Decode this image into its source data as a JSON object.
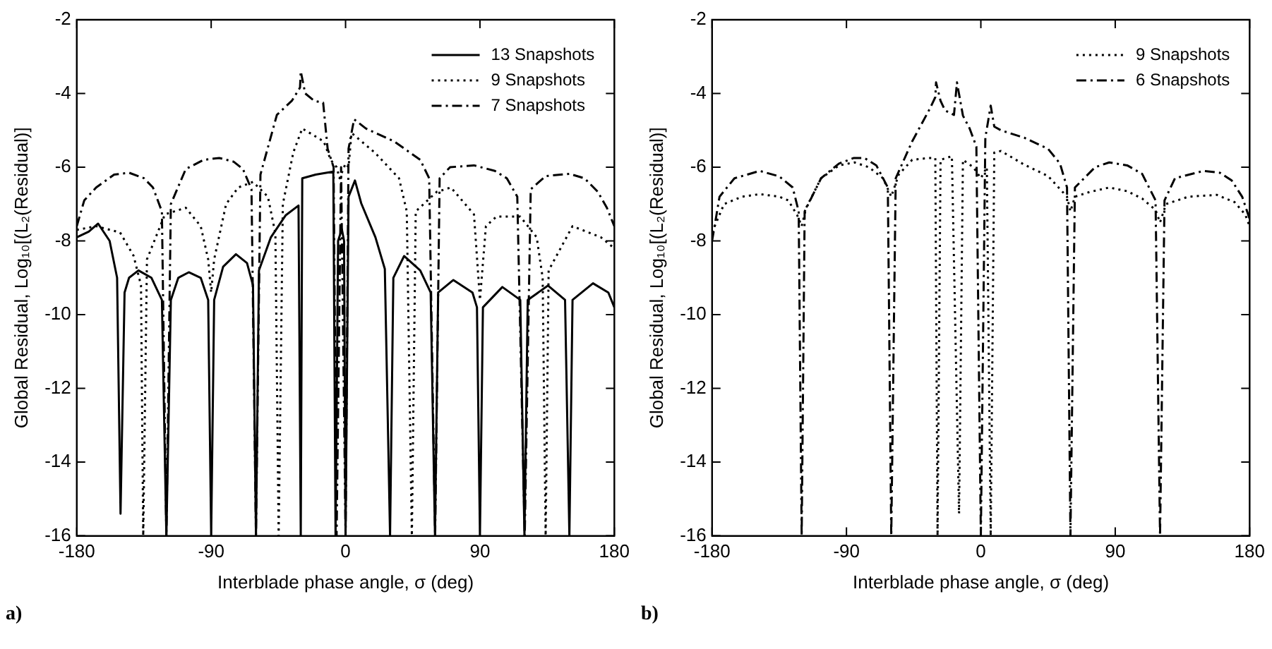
{
  "chart_data": [
    {
      "type": "line",
      "xlabel": "Interblade phase angle, σ (deg)",
      "ylabel": "Global Residual, Log₁₀[(L₂(Residual)]",
      "xlim": [
        -180,
        180
      ],
      "xticks": [
        -180,
        -90,
        0,
        90,
        180
      ],
      "ylim": [
        -16,
        -2
      ],
      "yticks": [
        -16,
        -14,
        -12,
        -10,
        -8,
        -6,
        -4,
        -2
      ],
      "grid": false,
      "legend": "top right",
      "marker": "none",
      "annotations": [
        "a)"
      ],
      "series": [
        {
          "name": "13 Snapshots",
          "color": "#000000",
          "line_style": "solid",
          "x": [
            -180,
            -172,
            -165.7,
            -158,
            -153,
            -150.7,
            -148,
            -145,
            -138.7,
            -130,
            -123,
            -120,
            -117,
            -112,
            -105,
            -97,
            -92,
            -90,
            -88,
            -82,
            -73.4,
            -66,
            -62,
            -60,
            -58,
            -50,
            -40,
            -31.5,
            -30,
            -29,
            -20,
            -8.2,
            -6.7,
            -5,
            -2.5,
            -1,
            0,
            2,
            6.3,
            10.5,
            20,
            26.3,
            29.8,
            32,
            39.2,
            50,
            57,
            59.9,
            62,
            72.2,
            85,
            88,
            90,
            92,
            105,
            117,
            119.8,
            122,
            135.6,
            147,
            149.9,
            152,
            165.7,
            176,
            180
          ],
          "values": [
            -7.9,
            -7.75,
            -7.53,
            -8.0,
            -9.0,
            -15.4,
            -9.4,
            -9.0,
            -8.8,
            -9.0,
            -9.6,
            -16,
            -9.6,
            -9.0,
            -8.85,
            -9.0,
            -9.6,
            -16,
            -9.6,
            -8.7,
            -8.36,
            -8.6,
            -9.2,
            -16,
            -8.8,
            -7.9,
            -7.3,
            -7.04,
            -16,
            -6.3,
            -6.2,
            -6.12,
            -16,
            -8.0,
            -7.68,
            -8.0,
            -16,
            -6.8,
            -6.36,
            -6.98,
            -7.9,
            -8.76,
            -16,
            -9.0,
            -8.41,
            -8.8,
            -9.4,
            -16,
            -9.4,
            -9.06,
            -9.4,
            -9.8,
            -16,
            -9.8,
            -9.25,
            -9.6,
            -16,
            -9.6,
            -9.21,
            -9.6,
            -16,
            -9.6,
            -9.15,
            -9.4,
            -9.8
          ]
        },
        {
          "name": "9 Snapshots",
          "color": "#000000",
          "line_style": "dotted",
          "x": [
            -180,
            -167,
            -151,
            -142,
            -137,
            -135.5,
            -133,
            -121,
            -107,
            -97,
            -92,
            -90,
            -88,
            -80,
            -71.9,
            -62,
            -52,
            -47,
            -44.8,
            -42,
            -35,
            -29,
            -14.6,
            -10,
            -6,
            -4,
            0,
            2,
            4,
            20,
            35.8,
            41,
            44.4,
            47,
            61,
            70.6,
            86,
            90,
            94,
            101,
            117,
            128,
            132,
            134,
            136,
            152,
            171,
            180
          ],
          "values": [
            -7.7,
            -7.6,
            -7.77,
            -8.4,
            -9.2,
            -16,
            -8.5,
            -7.28,
            -7.1,
            -7.6,
            -8.5,
            -9.4,
            -8.5,
            -7.0,
            -6.55,
            -6.4,
            -6.8,
            -7.8,
            -16,
            -7.0,
            -5.6,
            -4.95,
            -5.3,
            -5.8,
            -6.0,
            -6.3,
            -5.9,
            -6.0,
            -5.07,
            -5.62,
            -6.3,
            -7.2,
            -16,
            -7.2,
            -6.67,
            -6.55,
            -7.28,
            -9.6,
            -7.6,
            -7.34,
            -7.34,
            -7.9,
            -9.0,
            -16,
            -8.8,
            -7.6,
            -7.9,
            -8.2
          ]
        },
        {
          "name": "7 Snapshots",
          "color": "#000000",
          "line_style": "dashdot",
          "x": [
            -180,
            -175,
            -167,
            -155,
            -145,
            -135,
            -129,
            -123,
            -120,
            -117,
            -107,
            -95,
            -84.6,
            -75,
            -68.7,
            -63,
            -60,
            -57,
            -46,
            -36,
            -30.5,
            -30,
            -27,
            -21,
            -15,
            -12,
            -8,
            -6,
            -3,
            0,
            2,
            5.7,
            13.6,
            32.6,
            50,
            56,
            60,
            63,
            70,
            86,
            100,
            108,
            115,
            120,
            124,
            134,
            150,
            160,
            169,
            175,
            180
          ],
          "values": [
            -7.6,
            -6.9,
            -6.55,
            -6.2,
            -6.15,
            -6.3,
            -6.55,
            -7.2,
            -16,
            -7.0,
            -6.05,
            -5.8,
            -5.75,
            -5.85,
            -6.05,
            -6.6,
            -16,
            -6.2,
            -4.58,
            -4.2,
            -3.84,
            -3.4,
            -4.0,
            -4.2,
            -4.25,
            -5.5,
            -6.0,
            -16,
            -6.0,
            -16,
            -5.5,
            -4.7,
            -4.95,
            -5.3,
            -5.8,
            -6.3,
            -16,
            -6.3,
            -6.0,
            -5.95,
            -6.1,
            -6.3,
            -6.8,
            -16,
            -6.6,
            -6.24,
            -6.18,
            -6.3,
            -6.67,
            -7.1,
            -7.6
          ]
        }
      ]
    },
    {
      "type": "line",
      "xlabel": "Interblade phase angle, σ (deg)",
      "ylabel": "Global Residual, Log₁₀[(L₂(Residual)]",
      "xlim": [
        -180,
        180
      ],
      "xticks": [
        -180,
        -90,
        0,
        90,
        180
      ],
      "ylim": [
        -16,
        -2
      ],
      "yticks": [
        -16,
        -14,
        -12,
        -10,
        -8,
        -6,
        -4,
        -2
      ],
      "grid": false,
      "legend": "top right",
      "marker": "none",
      "annotations": [
        "b)"
      ],
      "series": [
        {
          "name": "9 Snapshots",
          "color": "#000000",
          "line_style": "dotted",
          "x": [
            -180,
            -172,
            -160,
            -148,
            -135,
            -129,
            -123,
            -120,
            -117,
            -107,
            -95,
            -84.6,
            -75,
            -65.5,
            -60,
            -55,
            -46,
            -35,
            -30.5,
            -29,
            -27,
            -19.4,
            -14.6,
            -12,
            -5,
            0,
            4,
            6.6,
            9,
            13.5,
            29,
            45,
            57.7,
            60,
            63,
            73,
            86,
            98,
            108,
            117,
            120,
            124,
            139,
            158,
            170,
            177,
            180
          ],
          "values": [
            -7.77,
            -7.0,
            -6.8,
            -6.73,
            -6.8,
            -6.9,
            -7.3,
            -7.6,
            -7.1,
            -6.3,
            -5.95,
            -5.87,
            -6.0,
            -6.3,
            -6.8,
            -6.2,
            -5.8,
            -5.75,
            -5.75,
            -16,
            -5.8,
            -5.7,
            -15.4,
            -5.8,
            -6.0,
            -6.3,
            -6.0,
            -16,
            -5.6,
            -5.56,
            -5.93,
            -6.24,
            -6.8,
            -7.2,
            -6.8,
            -6.67,
            -6.55,
            -6.65,
            -6.85,
            -7.16,
            -7.5,
            -7.0,
            -6.8,
            -6.75,
            -6.95,
            -7.28,
            -7.6
          ]
        },
        {
          "name": "6 Snapshots",
          "color": "#000000",
          "line_style": "dashdot",
          "x": [
            -180,
            -175,
            -165,
            -148,
            -135,
            -126,
            -122,
            -120,
            -118,
            -107,
            -95,
            -85,
            -78,
            -70,
            -62.3,
            -60,
            -57,
            -46,
            -34,
            -30.5,
            -30,
            -27,
            -24,
            -18,
            -16,
            -12,
            -7.5,
            -3,
            0,
            3,
            6.6,
            9,
            13.5,
            29,
            45,
            53,
            57.7,
            60,
            63,
            76.5,
            86,
            98,
            108,
            117,
            120,
            123,
            130,
            149,
            160,
            168,
            175,
            180
          ],
          "values": [
            -8.0,
            -6.8,
            -6.3,
            -6.1,
            -6.25,
            -6.55,
            -7.2,
            -16,
            -7.2,
            -6.3,
            -5.9,
            -5.75,
            -5.75,
            -5.95,
            -6.55,
            -16,
            -6.3,
            -5.3,
            -4.4,
            -4.1,
            -3.7,
            -4.2,
            -4.46,
            -4.58,
            -3.7,
            -4.6,
            -4.95,
            -5.44,
            -16,
            -5.2,
            -4.33,
            -4.9,
            -5.0,
            -5.2,
            -5.5,
            -5.9,
            -6.55,
            -16,
            -6.55,
            -6.0,
            -5.87,
            -5.95,
            -6.18,
            -6.9,
            -16,
            -6.9,
            -6.3,
            -6.1,
            -6.15,
            -6.36,
            -6.8,
            -7.4
          ]
        }
      ]
    }
  ]
}
